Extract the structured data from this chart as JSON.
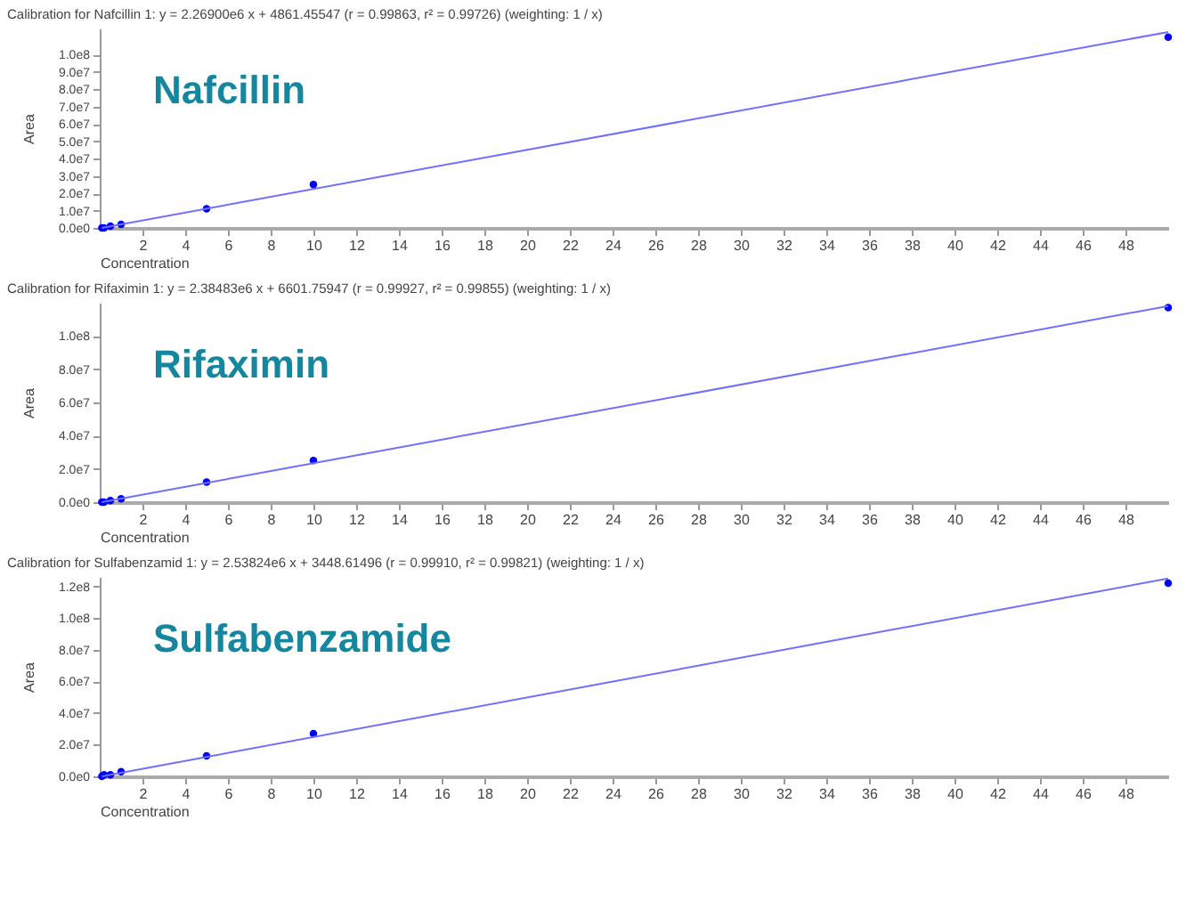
{
  "chart_data": [
    {
      "type": "scatter",
      "title": "Calibration for Nafcillin 1: y = 2.26900e6 x + 4861.45547 (r = 0.99863, r² = 0.99726)  (weighting: 1 / x)",
      "xlabel": "Concentration",
      "ylabel": "Area",
      "annotations": [
        "Nafcillin"
      ],
      "xlim": [
        0,
        50
      ],
      "xticks": [
        2,
        4,
        6,
        8,
        10,
        12,
        14,
        16,
        18,
        20,
        22,
        24,
        26,
        28,
        30,
        32,
        34,
        36,
        38,
        40,
        42,
        44,
        46,
        48
      ],
      "ylim": [
        0,
        115000000
      ],
      "yticks": [
        {
          "value": 0,
          "label": "0.0e0"
        },
        {
          "value": 10000000,
          "label": "1.0e7"
        },
        {
          "value": 20000000,
          "label": "2.0e7"
        },
        {
          "value": 30000000,
          "label": "3.0e7"
        },
        {
          "value": 40000000,
          "label": "4.0e7"
        },
        {
          "value": 50000000,
          "label": "5.0e7"
        },
        {
          "value": 60000000,
          "label": "6.0e7"
        },
        {
          "value": 70000000,
          "label": "7.0e7"
        },
        {
          "value": 80000000,
          "label": "8.0e7"
        },
        {
          "value": 90000000,
          "label": "9.0e7"
        },
        {
          "value": 100000000,
          "label": "1.0e8"
        }
      ],
      "marker": "circle",
      "series": [
        {
          "color": "#0000ff",
          "x": [
            0.1,
            0.2,
            0.5,
            1,
            5,
            10,
            50
          ],
          "values": [
            0,
            0,
            1000000,
            2000000,
            11000000,
            25000000,
            110000000
          ]
        },
        {
          "type": "line",
          "marker": "none",
          "color": "#7070ff",
          "x": [
            0.1,
            50
          ],
          "values": [
            0,
            113000000
          ]
        }
      ]
    },
    {
      "type": "scatter",
      "title": "Calibration for Rifaximin 1: y = 2.38483e6 x + 6601.75947 (r = 0.99927, r² = 0.99855)  (weighting: 1 / x)",
      "xlabel": "Concentration",
      "ylabel": "Area",
      "annotations": [
        "Rifaximin"
      ],
      "xlim": [
        0,
        50
      ],
      "xticks": [
        2,
        4,
        6,
        8,
        10,
        12,
        14,
        16,
        18,
        20,
        22,
        24,
        26,
        28,
        30,
        32,
        34,
        36,
        38,
        40,
        42,
        44,
        46,
        48
      ],
      "ylim": [
        0,
        120000000
      ],
      "yticks": [
        {
          "value": 0,
          "label": "0.0e0"
        },
        {
          "value": 20000000,
          "label": "2.0e7"
        },
        {
          "value": 40000000,
          "label": "4.0e7"
        },
        {
          "value": 60000000,
          "label": "6.0e7"
        },
        {
          "value": 80000000,
          "label": "8.0e7"
        },
        {
          "value": 100000000,
          "label": "1.0e8"
        }
      ],
      "marker": "circle",
      "series": [
        {
          "color": "#0000ff",
          "x": [
            0.1,
            0.2,
            0.5,
            1,
            5,
            10,
            50
          ],
          "values": [
            0,
            0,
            1000000,
            2000000,
            12000000,
            25000000,
            117000000
          ]
        },
        {
          "type": "line",
          "marker": "none",
          "color": "#7070ff",
          "x": [
            0.1,
            50
          ],
          "values": [
            0,
            118000000
          ]
        }
      ]
    },
    {
      "type": "scatter",
      "title": "Calibration for Sulfabenzamid 1: y = 2.53824e6 x + 3448.61496 (r = 0.99910, r² = 0.99821)  (weighting: 1 / x)",
      "xlabel": "Concentration",
      "ylabel": "Area",
      "annotations": [
        "Sulfabenzamide"
      ],
      "xlim": [
        0,
        50
      ],
      "xticks": [
        2,
        4,
        6,
        8,
        10,
        12,
        14,
        16,
        18,
        20,
        22,
        24,
        26,
        28,
        30,
        32,
        34,
        36,
        38,
        40,
        42,
        44,
        46,
        48
      ],
      "ylim": [
        0,
        126000000
      ],
      "yticks": [
        {
          "value": 0,
          "label": "0.0e0"
        },
        {
          "value": 20000000,
          "label": "2.0e7"
        },
        {
          "value": 40000000,
          "label": "4.0e7"
        },
        {
          "value": 60000000,
          "label": "6.0e7"
        },
        {
          "value": 80000000,
          "label": "8.0e7"
        },
        {
          "value": 100000000,
          "label": "1.0e8"
        },
        {
          "value": 120000000,
          "label": "1.2e8"
        }
      ],
      "marker": "circle",
      "series": [
        {
          "color": "#0000ff",
          "x": [
            0.1,
            0.2,
            0.5,
            1,
            5,
            10,
            50
          ],
          "values": [
            0,
            1000000,
            1000000,
            3000000,
            13000000,
            27000000,
            122000000
          ]
        },
        {
          "type": "line",
          "marker": "none",
          "color": "#7070ff",
          "x": [
            0.1,
            50
          ],
          "values": [
            0,
            125000000
          ]
        }
      ]
    }
  ]
}
